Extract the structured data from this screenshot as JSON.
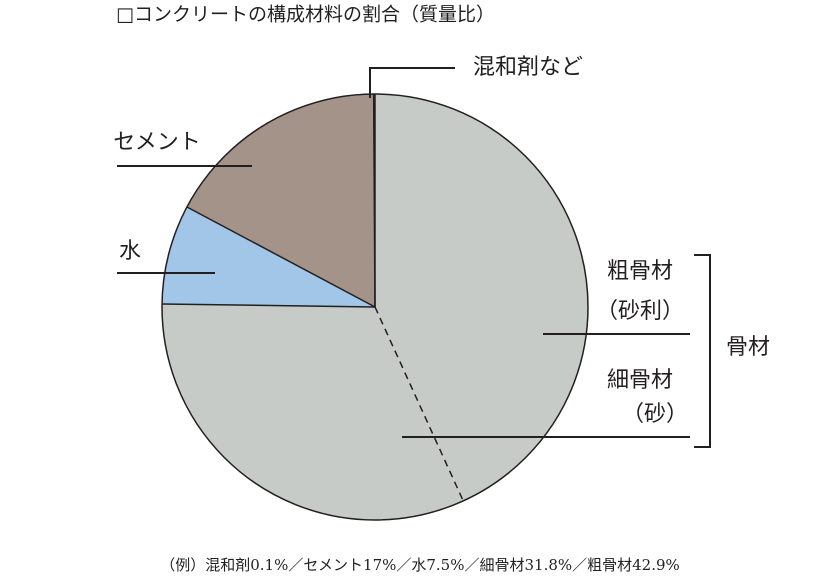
{
  "chart_data": {
    "type": "pie",
    "title": "□コンクリートの構成材料の割合（質量比）",
    "categories": [
      [
        "粗骨材",
        "（砂利）"
      ],
      [
        "細骨材",
        "（砂）"
      ],
      "水",
      "セメント",
      "混和剤など"
    ],
    "values": [
      42.9,
      31.8,
      7.5,
      17,
      0.1
    ],
    "colors": [
      "#c7cbc8",
      "#c7cbc8",
      "#a2c6e8",
      "#a39389",
      "#cbbd90"
    ],
    "group_label": "骨材",
    "note": "（例）混和剤0.1%／セメント17%／水7.5%／細骨材31.8%／粗骨材42.9%"
  }
}
